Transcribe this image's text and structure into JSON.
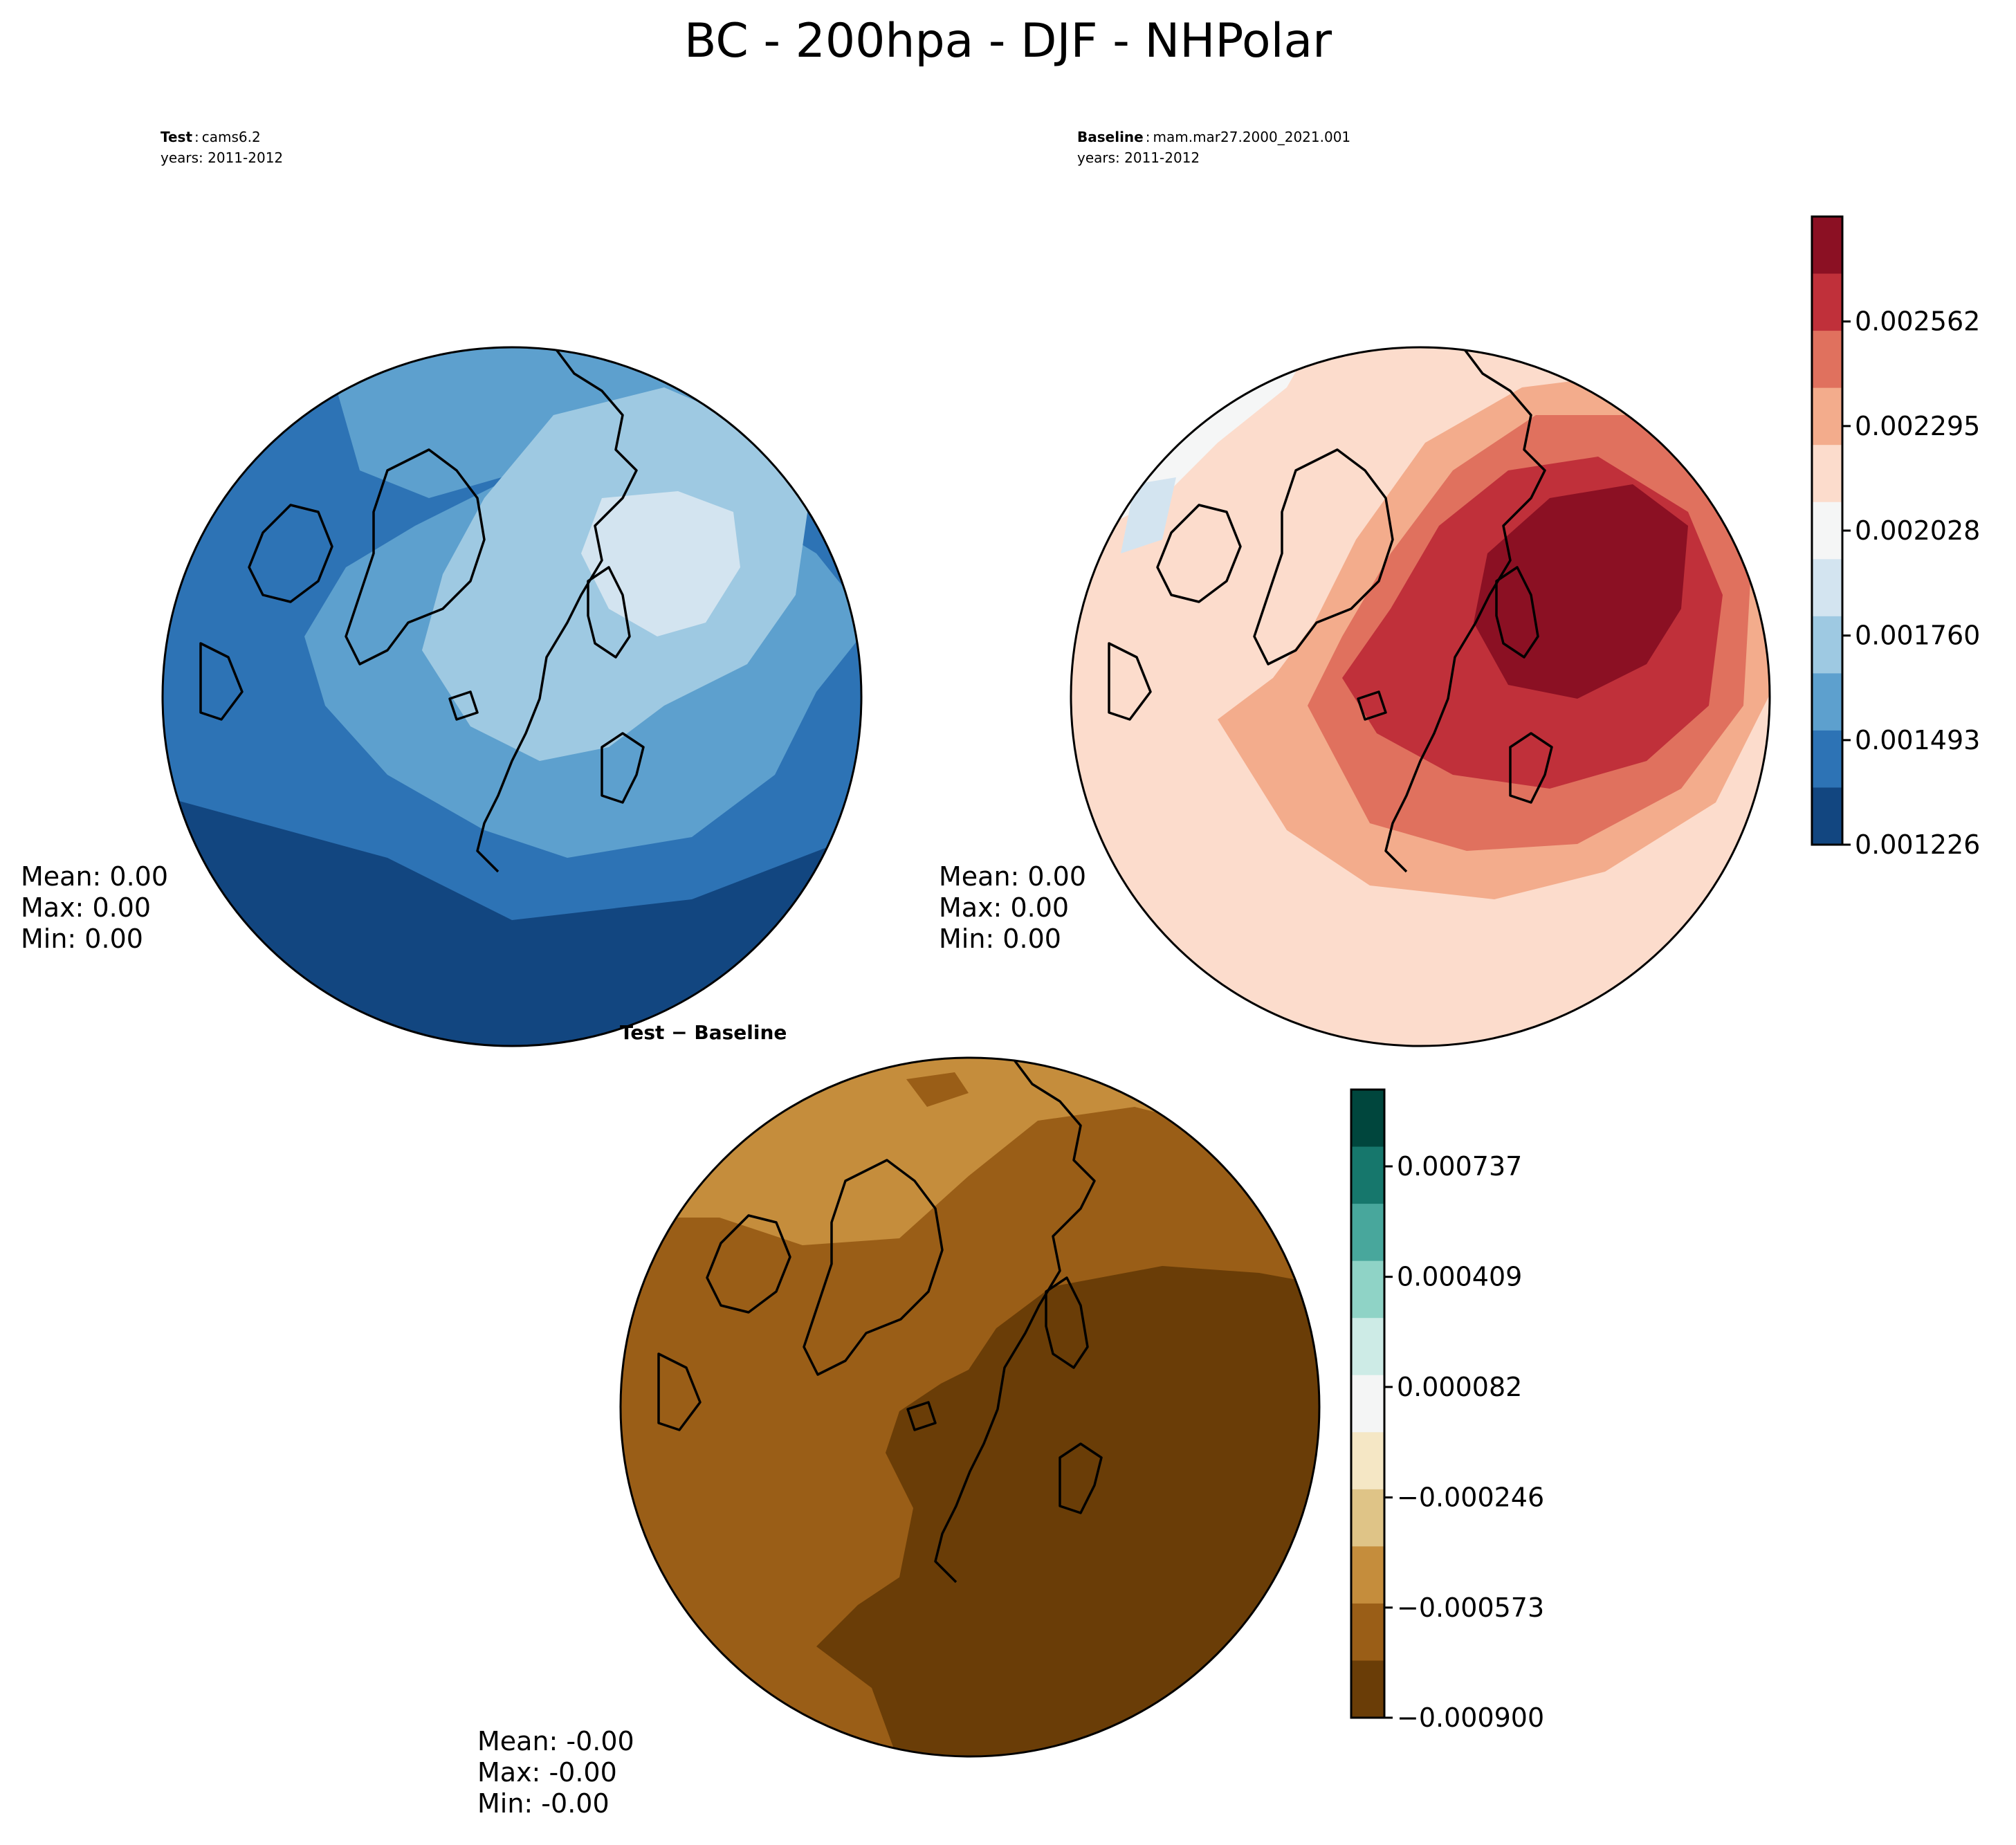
{
  "title": "BC - 200hpa - DJF - NHPolar",
  "panels": {
    "test": {
      "label_bold": "Test",
      "label_sep": ":",
      "case_name": "cams6.2",
      "years": "years: 2011-2012",
      "stats": {
        "mean": "Mean:  0.00",
        "max": "Max:  0.00",
        "min": "Min:  0.00"
      }
    },
    "baseline": {
      "label_bold": "Baseline",
      "label_sep": ":",
      "case_name": "mam.mar27.2000_2021.001",
      "years": "years: 2011-2012",
      "stats": {
        "mean": "Mean:  0.00",
        "max": "Max:  0.00",
        "min": "Min:  0.00"
      }
    },
    "diff": {
      "title": "Test − Baseline",
      "stats": {
        "mean": "Mean: -0.00",
        "max": "Max: -0.00",
        "min": "Min: -0.00"
      }
    }
  },
  "colorbars": {
    "main": {
      "ticks": [
        "0.002562",
        "0.002295",
        "0.002028",
        "0.001760",
        "0.001493",
        "0.001226"
      ],
      "tick_values": [
        0.002562,
        0.002295,
        0.002028,
        0.00176,
        0.001493,
        0.001226
      ],
      "range": [
        0.001226,
        0.00283
      ],
      "colors_top_to_bottom": [
        "#8b1023",
        "#c0303a",
        "#e0715e",
        "#f3ac8c",
        "#fcdccc",
        "#f5f6f6",
        "#d3e4f0",
        "#9ec9e2",
        "#5da0ce",
        "#2d73b5",
        "#124680"
      ]
    },
    "diff": {
      "ticks": [
        "0.000737",
        "0.000409",
        "0.000082",
        "−0.000246",
        "−0.000573",
        "−0.000900"
      ],
      "tick_values": [
        0.000737,
        0.000409,
        8.2e-05,
        -0.000246,
        -0.000573,
        -0.0009
      ],
      "range": [
        -0.0009,
        0.000965
      ],
      "colors_top_to_bottom": [
        "#00463d",
        "#16776c",
        "#48a79c",
        "#8fd3c6",
        "#cdebe6",
        "#f4f5f5",
        "#f5e7c5",
        "#dfc487",
        "#c58d3c",
        "#9a5e17",
        "#6a3d07"
      ]
    }
  }
}
